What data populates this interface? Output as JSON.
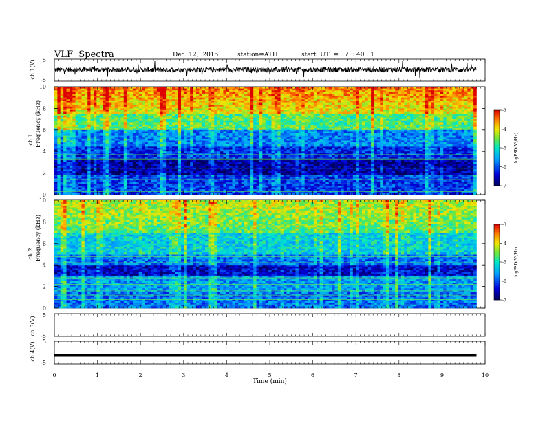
{
  "header": {
    "title": "VLF  Spectra",
    "date": "Dec. 12,  2015",
    "station": "station=ATH",
    "start": "start  UT  =   7  : 40 : 1"
  },
  "chart_data": [
    {
      "id": "ch1-waveform",
      "type": "line",
      "ylabel": "ch.1(V)",
      "ylim": [
        -5,
        5
      ],
      "yticks": [
        "5",
        "-5"
      ],
      "xlim": [
        0,
        10
      ],
      "description_level": 0.2
    },
    {
      "id": "ch1-spectrogram",
      "type": "heatmap",
      "ylabel": "ch.1\nFrequency (kHz)",
      "ylabel_lines": [
        "ch.1",
        "Frequency  (kHz)"
      ],
      "ylim": [
        0,
        10
      ],
      "yticks": [
        "0",
        "2",
        "4",
        "6",
        "8",
        "10"
      ],
      "x_extent_min": 9.8,
      "colorbar": {
        "label": "logPSD(V²/Hz)",
        "ticks": [
          "-3",
          "-4",
          "-5",
          "-6",
          "-7"
        ],
        "range": [
          -7,
          -3
        ]
      }
    },
    {
      "id": "ch2-spectrogram",
      "type": "heatmap",
      "ylabel_lines": [
        "ch.2",
        "Frequency  (kHz)"
      ],
      "ylim": [
        0,
        10
      ],
      "yticks": [
        "0",
        "2",
        "4",
        "6",
        "8",
        "10"
      ],
      "x_extent_min": 9.8,
      "colorbar": {
        "label": "logPSD(V²/Hz)",
        "ticks": [
          "-3",
          "-4",
          "-5",
          "-6",
          "-7"
        ],
        "range": [
          -7,
          -3
        ]
      }
    },
    {
      "id": "ch3-waveform",
      "type": "line",
      "ylabel": "ch.3(V)",
      "ylim": [
        -5,
        5
      ],
      "yticks": [
        "5",
        "-5"
      ],
      "empty": true
    },
    {
      "id": "ch4-waveform",
      "type": "line",
      "ylabel": "ch.4(V)",
      "ylim": [
        -5,
        5
      ],
      "yticks": [
        "5",
        "-5"
      ],
      "level": -1.2
    }
  ],
  "xaxis": {
    "label": "Time  (min)",
    "ticks": [
      "0",
      "1",
      "2",
      "3",
      "4",
      "5",
      "6",
      "7",
      "8",
      "9",
      "10"
    ],
    "range": [
      0,
      10
    ]
  },
  "colors": {
    "axis": "#000000",
    "trace": "#000000"
  }
}
